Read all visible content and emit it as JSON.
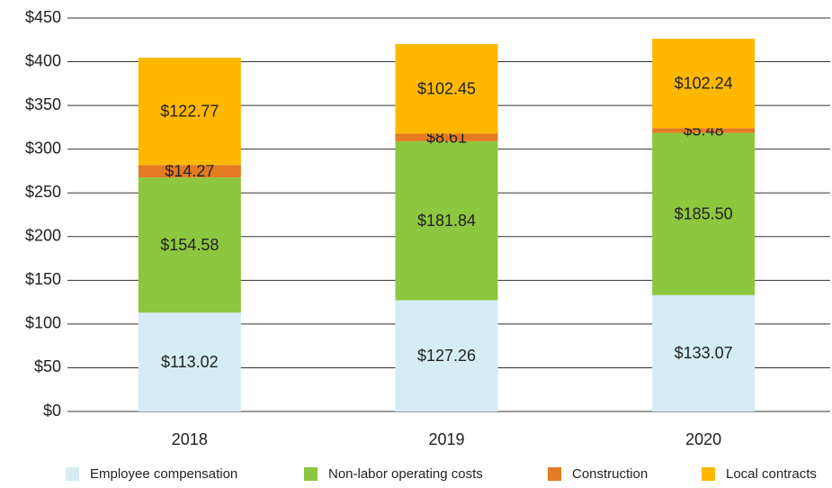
{
  "chart_data": {
    "type": "stacked_bar",
    "categories": [
      "2018",
      "2019",
      "2020"
    ],
    "series": [
      {
        "name": "Employee compensation",
        "color": "#d5ecf4",
        "values": [
          113.02,
          127.26,
          133.07
        ],
        "value_labels": [
          "$113.02",
          "$127.26",
          "$133.07"
        ]
      },
      {
        "name": "Non-labor operating costs",
        "color": "#8dc63f",
        "values": [
          154.58,
          181.84,
          185.5
        ],
        "value_labels": [
          "$154.58",
          "$181.84",
          "$185.50"
        ]
      },
      {
        "name": "Construction",
        "color": "#e37b22",
        "values": [
          14.27,
          8.61,
          5.48
        ],
        "value_labels": [
          "$14.27",
          "$8.61",
          "$5.48"
        ]
      },
      {
        "name": "Local contracts",
        "color": "#ffb800",
        "values": [
          122.77,
          102.45,
          102.24
        ],
        "value_labels": [
          "$122.77",
          "$102.45",
          "$102.24"
        ]
      }
    ],
    "ylim": [
      0,
      450
    ],
    "yticks": [
      {
        "value": 0,
        "label": "$0"
      },
      {
        "value": 50,
        "label": "$50"
      },
      {
        "value": 100,
        "label": "$100"
      },
      {
        "value": 150,
        "label": "$150"
      },
      {
        "value": 200,
        "label": "$200"
      },
      {
        "value": 250,
        "label": "$250"
      },
      {
        "value": 300,
        "label": "$300"
      },
      {
        "value": 350,
        "label": "$350"
      },
      {
        "value": 400,
        "label": "$400"
      },
      {
        "value": 450,
        "label": "$450"
      }
    ],
    "grid": true,
    "legend": "bottom"
  }
}
